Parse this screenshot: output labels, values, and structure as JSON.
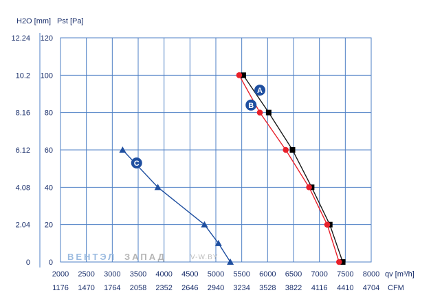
{
  "chart_data": {
    "type": "line",
    "y_axis_labels": {
      "left_unit": "H2O [mm]",
      "right_unit": "Pst [Pa]"
    },
    "x_axis_labels": {
      "top_unit": "qv [m³/h]",
      "bottom_unit": "CFM"
    },
    "x_ticks_m3h": [
      "2000",
      "2500",
      "3000",
      "3500",
      "4000",
      "4500",
      "5000",
      "5500",
      "6000",
      "6500",
      "7000",
      "7500",
      "8000"
    ],
    "x_ticks_cfm": [
      "1176",
      "1470",
      "1764",
      "2058",
      "2352",
      "2646",
      "2940",
      "3234",
      "3528",
      "3822",
      "4116",
      "4410",
      "4704"
    ],
    "y_ticks_mm": [
      "0",
      "2.04",
      "4.08",
      "6.12",
      "8.16",
      "10.2",
      "12.24"
    ],
    "y_ticks_pa": [
      "0",
      "20",
      "40",
      "60",
      "80",
      "100",
      "120"
    ],
    "xlim": [
      2000,
      8000
    ],
    "ylim": [
      0,
      120
    ],
    "grid": true,
    "series": [
      {
        "name": "A",
        "color": "#1a1a1a",
        "marker_color": "#000000",
        "marker": "square",
        "label_at": [
          5850,
          92
        ],
        "points": [
          [
            5530,
            100
          ],
          [
            6020,
            80
          ],
          [
            6480,
            60
          ],
          [
            6850,
            40
          ],
          [
            7200,
            20
          ],
          [
            7450,
            0
          ]
        ]
      },
      {
        "name": "B",
        "color": "#e8202a",
        "marker_color": "#e8202a",
        "marker": "circle",
        "label_at": [
          5680,
          84
        ],
        "points": [
          [
            5450,
            100
          ],
          [
            5850,
            80
          ],
          [
            6350,
            60
          ],
          [
            6800,
            40
          ],
          [
            7150,
            20
          ],
          [
            7380,
            0
          ]
        ]
      },
      {
        "name": "C",
        "color": "#1f4fa0",
        "marker_color": "#1f4fa0",
        "marker": "triangle",
        "label_at": [
          3470,
          53
        ],
        "points": [
          [
            3200,
            60
          ],
          [
            3880,
            40
          ],
          [
            4780,
            20
          ],
          [
            5050,
            10
          ],
          [
            5280,
            0
          ]
        ]
      }
    ]
  },
  "watermark": {
    "part1": "ВЕНТЭЛ",
    "part2": "ЗАПАД",
    "part3": "V-W.BY"
  }
}
